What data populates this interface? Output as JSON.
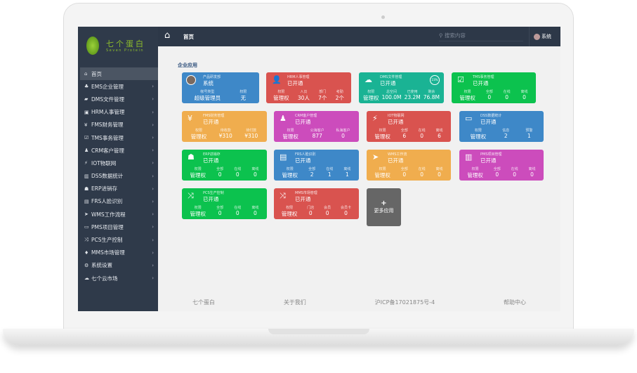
{
  "brand": {
    "name_cn": "七个蛋白",
    "name_en": "Seven Protein"
  },
  "header": {
    "title": "首页",
    "search_placeholder": "搜索内容",
    "user": "系统"
  },
  "section_title": "企业应用",
  "sidebar": [
    {
      "label": "首页",
      "icon": "⌂",
      "active": true
    },
    {
      "label": "EMS企业管理",
      "icon": "♣"
    },
    {
      "label": "DMS文件管理",
      "icon": "▰"
    },
    {
      "label": "HRM人事管理",
      "icon": "▣"
    },
    {
      "label": "FMS财务管理",
      "icon": "¥"
    },
    {
      "label": "TMS事务管理",
      "icon": "☑"
    },
    {
      "label": "CRM客户管理",
      "icon": "♟"
    },
    {
      "label": "IOT物联网",
      "icon": "⚡"
    },
    {
      "label": "DSS数据统计",
      "icon": "▥"
    },
    {
      "label": "ERP进销存",
      "icon": "☗"
    },
    {
      "label": "FRS人脸识别",
      "icon": "▤"
    },
    {
      "label": "WMS工作流程",
      "icon": "➤"
    },
    {
      "label": "PMS项目管理",
      "icon": "▭"
    },
    {
      "label": "PCS生产控制",
      "icon": "⤨"
    },
    {
      "label": "MMS市场管理",
      "icon": "♦"
    },
    {
      "label": "系统设置",
      "icon": "⚙"
    },
    {
      "label": "七个云市场",
      "icon": "☁"
    }
  ],
  "cards": [
    {
      "name": "产品研发部",
      "status": "系统",
      "color": "#3e88c8",
      "icon": "avatar",
      "stats": [
        [
          "帐号类型",
          "超级管理员"
        ],
        [
          "权限",
          "无"
        ]
      ]
    },
    {
      "name": "HRM人事管理",
      "status": "已开通",
      "color": "#d9534f",
      "icon": "👤",
      "stats": [
        [
          "权限",
          "管理权"
        ],
        [
          "人员",
          "30人"
        ],
        [
          "部门",
          "7个"
        ],
        [
          "考勤",
          "2个"
        ]
      ]
    },
    {
      "name": "DMS文件管理",
      "status": "已开通",
      "color": "#1ab394",
      "icon": "☁",
      "ring": "23%",
      "stats": [
        [
          "权限",
          "管理权"
        ],
        [
          "总空间",
          "100.0M"
        ],
        [
          "已使用",
          "23.2M"
        ],
        [
          "剩余",
          "76.8M"
        ]
      ]
    },
    {
      "name": "TMS事务管理",
      "status": "已开通",
      "color": "#0cc24e",
      "icon": "☑",
      "stats": [
        [
          "权限",
          "管理权"
        ],
        [
          "全部",
          "0"
        ],
        [
          "在线",
          "0"
        ],
        [
          "离线",
          "0"
        ]
      ]
    },
    {
      "name": "FMS财务管理",
      "status": "已开通",
      "color": "#f0ad4e",
      "icon": "¥",
      "stats": [
        [
          "权限",
          "管理权"
        ],
        [
          "待收款",
          "¥310"
        ],
        [
          "待付款",
          "¥310"
        ]
      ]
    },
    {
      "name": "CRM客户管理",
      "status": "已开通",
      "color": "#cc4cbc",
      "icon": "♟",
      "stats": [
        [
          "权限",
          "管理权"
        ],
        [
          "公海客户",
          "877"
        ],
        [
          "私海客户",
          "0"
        ]
      ]
    },
    {
      "name": "IOT物联网",
      "status": "已开通",
      "color": "#d9534f",
      "icon": "⚡",
      "stats": [
        [
          "权限",
          "管理权"
        ],
        [
          "全部",
          "6"
        ],
        [
          "在线",
          "0"
        ],
        [
          "离线",
          "6"
        ]
      ]
    },
    {
      "name": "DSS数据统计",
      "status": "已开通",
      "color": "#3e88c8",
      "icon": "▭",
      "stats": [
        [
          "权限",
          "管理权"
        ],
        [
          "信息",
          "2"
        ],
        [
          "预警",
          "1"
        ]
      ]
    },
    {
      "name": "ERP进销存",
      "status": "已开通",
      "color": "#0cc24e",
      "icon": "☗",
      "stats": [
        [
          "权限",
          "管理权"
        ],
        [
          "全部",
          "0"
        ],
        [
          "在线",
          "0"
        ],
        [
          "离线",
          "0"
        ]
      ]
    },
    {
      "name": "FRS人脸识别",
      "status": "已开通",
      "color": "#3e88c8",
      "icon": "▤",
      "stats": [
        [
          "权限",
          "管理权"
        ],
        [
          "全部",
          "2"
        ],
        [
          "在线",
          "1"
        ],
        [
          "离线",
          "1"
        ]
      ]
    },
    {
      "name": "WMS工作流",
      "status": "已开通",
      "color": "#f0ad4e",
      "icon": "➤",
      "stats": [
        [
          "权限",
          "管理权"
        ],
        [
          "全部",
          "0"
        ],
        [
          "在线",
          "0"
        ],
        [
          "离线",
          "0"
        ]
      ]
    },
    {
      "name": "PMS项目管理",
      "status": "已开通",
      "color": "#cc4cbc",
      "icon": "▥",
      "stats": [
        [
          "权限",
          "管理权"
        ],
        [
          "全部",
          "0"
        ],
        [
          "在线",
          "0"
        ],
        [
          "离线",
          "0"
        ]
      ]
    },
    {
      "name": "PCS生产控制",
      "status": "已开通",
      "color": "#0cc24e",
      "icon": "⤨",
      "stats": [
        [
          "权限",
          "管理权"
        ],
        [
          "全部",
          "0"
        ],
        [
          "在线",
          "0"
        ],
        [
          "离线",
          "0"
        ]
      ]
    },
    {
      "name": "MMS市场管理",
      "status": "已开通",
      "color": "#d9534f",
      "icon": "⤨",
      "stats": [
        [
          "权限",
          "管理权"
        ],
        [
          "门店",
          "0"
        ],
        [
          "会员",
          "0"
        ],
        [
          "会员卡",
          "0"
        ]
      ]
    }
  ],
  "more": {
    "icon": "+",
    "label": "更多应用"
  },
  "footer": [
    "七个蛋白",
    "关于我们",
    "沪ICP备17021875号-4",
    "帮助中心"
  ]
}
